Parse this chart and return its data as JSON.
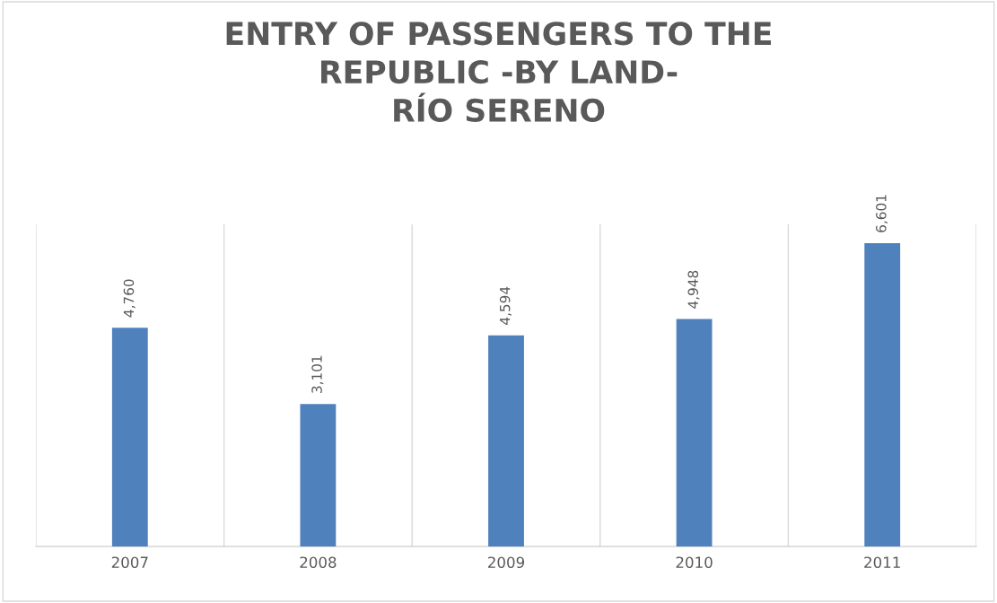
{
  "chart_data": {
    "type": "bar",
    "title": "ENTRY OF PASSENGERS TO THE\nREPUBLIC -BY LAND-\nRÍO SERENO",
    "categories": [
      "2007",
      "2008",
      "2009",
      "2010",
      "2011"
    ],
    "values": [
      4760,
      3101,
      4594,
      4948,
      6601
    ],
    "value_labels": [
      "4,760",
      "3,101",
      "4,594",
      "4,948",
      "6,601"
    ],
    "color": "#4f81bd",
    "grid": "x",
    "tick_labels": "x",
    "legend": false
  }
}
